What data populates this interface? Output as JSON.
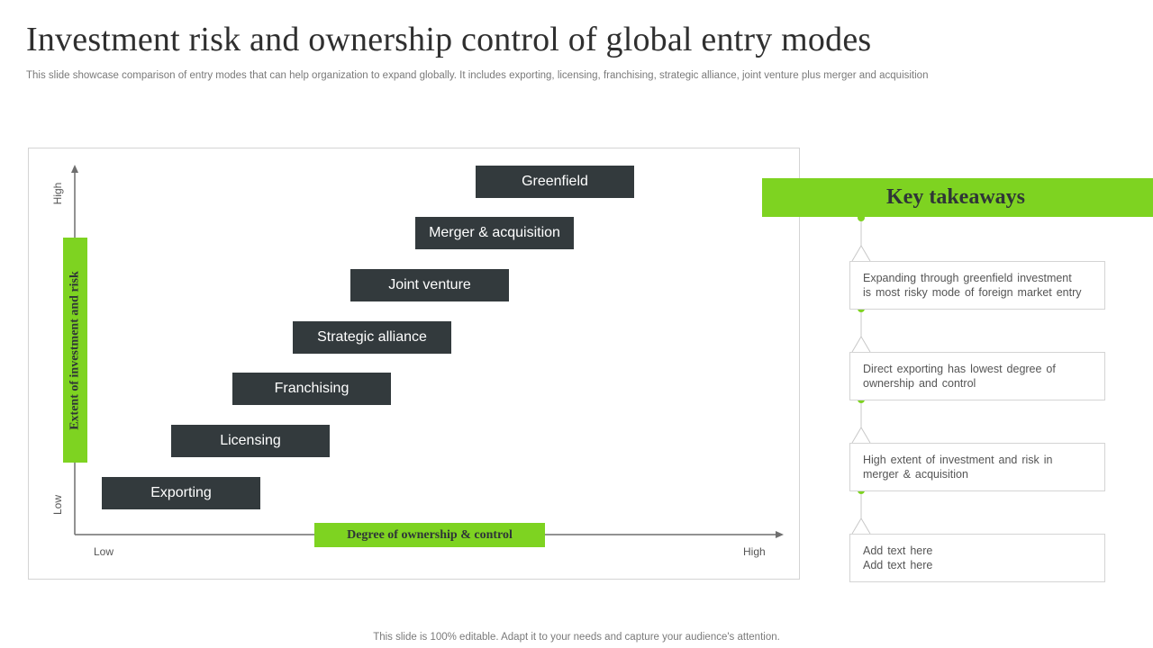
{
  "title": "Investment risk and ownership control of global entry modes",
  "subtitle": "This slide showcase comparison of entry modes that can help organization to expand globally. It includes exporting, licensing, franchising, strategic alliance, joint venture plus merger and acquisition",
  "diagram": {
    "y_axis": {
      "title": "Extent of investment and risk",
      "low": "Low",
      "high": "High"
    },
    "x_axis": {
      "title": "Degree of ownership & control",
      "low": "Low",
      "high": "High"
    },
    "entry_modes": [
      "Greenfield",
      "Merger & acquisition",
      "Joint venture",
      "Strategic alliance",
      "Franchising",
      "Licensing",
      "Exporting"
    ]
  },
  "key_takeaways": {
    "header": "Key takeaways",
    "items": [
      {
        "line1": "Expanding through greenfield investment",
        "line2": "is most risky mode of foreign  market entry"
      },
      {
        "line1": "Direct exporting has lowest degree of",
        "line2": "ownership and control"
      },
      {
        "line1": "High extent of investment and risk in",
        "line2": "merger & acquisition"
      },
      {
        "line1": "Add text here",
        "line2": "Add text here"
      }
    ]
  },
  "colors": {
    "accent": "#7ed321",
    "box": "#333a3d",
    "text_dark": "#2f3537",
    "border": "#d4d4d4"
  },
  "footer": "This slide is 100% editable. Adapt it to your needs and capture your audience's attention."
}
